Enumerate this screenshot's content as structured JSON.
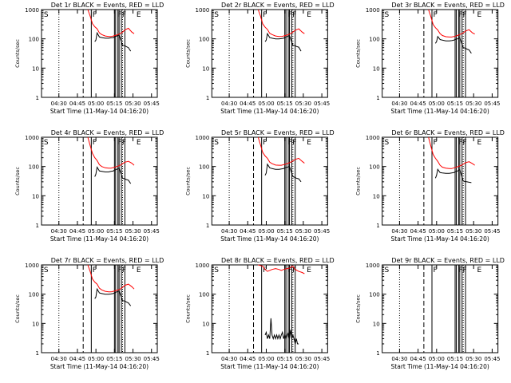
{
  "figure": {
    "xlabel_template": "Start Time (11-May-14 04:16:20)",
    "ylabel": "Counts/sec",
    "x_ticks": [
      "04:30",
      "04:45",
      "05:00",
      "05:15",
      "05:30",
      "05:45"
    ],
    "y_ticks": [
      "1",
      "10",
      "100",
      "1000"
    ],
    "event_letters": [
      "S",
      "F",
      "FF",
      "E"
    ],
    "colors": {
      "events": "#000000",
      "lld": "#ff0000",
      "axes": "#000000"
    }
  },
  "chart_data": [
    {
      "type": "line",
      "title": "Det 1r BLACK = Events, RED = LLD",
      "xlabel": "Start Time (11-May-14 04:16:20)",
      "ylabel": "Counts/sec",
      "y_scale": "log",
      "ylim": [
        1,
        1000
      ],
      "series": [
        {
          "name": "Events",
          "color": "#000000",
          "x": [
            0.46,
            0.47,
            0.48,
            0.5,
            0.52,
            0.55,
            0.58,
            0.6,
            0.62,
            0.63,
            0.65,
            0.67,
            0.7,
            0.72,
            0.73,
            0.75,
            0.77
          ],
          "y": [
            80,
            90,
            160,
            115,
            110,
            105,
            105,
            108,
            110,
            118,
            125,
            135,
            60,
            58,
            55,
            50,
            38
          ]
        },
        {
          "name": "LLD",
          "color": "#ff0000",
          "x": [
            0.4,
            0.42,
            0.44,
            0.46,
            0.48,
            0.5,
            0.52,
            0.55,
            0.58,
            0.6,
            0.62,
            0.65,
            0.68,
            0.7,
            0.72,
            0.75,
            0.78,
            0.8
          ],
          "y": [
            1000,
            600,
            330,
            260,
            220,
            160,
            140,
            125,
            120,
            120,
            125,
            135,
            150,
            170,
            200,
            230,
            170,
            150
          ]
        }
      ]
    },
    {
      "type": "line",
      "title": "Det 2r BLACK = Events, RED = LLD",
      "xlabel": "Start Time (11-May-14 04:16:20)",
      "ylabel": "Counts/sec",
      "y_scale": "log",
      "ylim": [
        1,
        1000
      ],
      "series": [
        {
          "name": "Events",
          "color": "#000000",
          "x": [
            0.46,
            0.47,
            0.48,
            0.5,
            0.52,
            0.55,
            0.58,
            0.6,
            0.62,
            0.63,
            0.65,
            0.67,
            0.7,
            0.72,
            0.73,
            0.75,
            0.77
          ],
          "y": [
            80,
            90,
            150,
            110,
            105,
            100,
            100,
            102,
            105,
            110,
            120,
            128,
            60,
            58,
            55,
            52,
            38
          ]
        },
        {
          "name": "LLD",
          "color": "#ff0000",
          "x": [
            0.4,
            0.42,
            0.44,
            0.46,
            0.48,
            0.5,
            0.52,
            0.55,
            0.58,
            0.6,
            0.62,
            0.65,
            0.68,
            0.7,
            0.72,
            0.75,
            0.78,
            0.8
          ],
          "y": [
            1000,
            600,
            320,
            250,
            210,
            155,
            140,
            125,
            120,
            120,
            125,
            135,
            150,
            170,
            195,
            220,
            170,
            150
          ]
        }
      ]
    },
    {
      "type": "line",
      "title": "Det 3r BLACK = Events, RED = LLD",
      "xlabel": "Start Time (11-May-14 04:16:20)",
      "ylabel": "Counts/sec",
      "y_scale": "log",
      "ylim": [
        1,
        1000
      ],
      "series": [
        {
          "name": "Events",
          "color": "#000000",
          "x": [
            0.46,
            0.47,
            0.48,
            0.5,
            0.52,
            0.55,
            0.58,
            0.6,
            0.62,
            0.63,
            0.65,
            0.67,
            0.7,
            0.72,
            0.73,
            0.75,
            0.77
          ],
          "y": [
            70,
            80,
            120,
            95,
            90,
            85,
            85,
            87,
            90,
            95,
            100,
            108,
            50,
            48,
            45,
            42,
            32
          ]
        },
        {
          "name": "LLD",
          "color": "#ff0000",
          "x": [
            0.4,
            0.42,
            0.44,
            0.46,
            0.48,
            0.5,
            0.52,
            0.55,
            0.58,
            0.6,
            0.62,
            0.65,
            0.68,
            0.7,
            0.72,
            0.75,
            0.78,
            0.8
          ],
          "y": [
            1000,
            580,
            310,
            240,
            200,
            150,
            130,
            118,
            115,
            115,
            120,
            130,
            145,
            160,
            185,
            205,
            160,
            145
          ]
        }
      ]
    },
    {
      "type": "line",
      "title": "Det 4r BLACK = Events, RED = LLD",
      "xlabel": "Start Time (11-May-14 04:16:20)",
      "ylabel": "Counts/sec",
      "y_scale": "log",
      "ylim": [
        1,
        1000
      ],
      "series": [
        {
          "name": "Events",
          "color": "#000000",
          "x": [
            0.46,
            0.47,
            0.48,
            0.5,
            0.52,
            0.55,
            0.58,
            0.6,
            0.62,
            0.63,
            0.65,
            0.67,
            0.7,
            0.72,
            0.73,
            0.75,
            0.77
          ],
          "y": [
            45,
            55,
            95,
            70,
            68,
            65,
            65,
            68,
            70,
            75,
            80,
            88,
            40,
            38,
            36,
            34,
            26
          ]
        },
        {
          "name": "LLD",
          "color": "#ff0000",
          "x": [
            0.4,
            0.42,
            0.44,
            0.46,
            0.48,
            0.5,
            0.52,
            0.55,
            0.58,
            0.6,
            0.62,
            0.65,
            0.68,
            0.7,
            0.72,
            0.75,
            0.78,
            0.8
          ],
          "y": [
            1000,
            520,
            280,
            200,
            160,
            115,
            100,
            90,
            88,
            88,
            92,
            100,
            110,
            125,
            140,
            150,
            130,
            110
          ]
        }
      ]
    },
    {
      "type": "line",
      "title": "Det 5r BLACK = Events, RED = LLD",
      "xlabel": "Start Time (11-May-14 04:16:20)",
      "ylabel": "Counts/sec",
      "y_scale": "log",
      "ylim": [
        1,
        1000
      ],
      "series": [
        {
          "name": "Events",
          "color": "#000000",
          "x": [
            0.46,
            0.47,
            0.48,
            0.5,
            0.52,
            0.55,
            0.58,
            0.6,
            0.62,
            0.63,
            0.65,
            0.67,
            0.7,
            0.72,
            0.73,
            0.75,
            0.77
          ],
          "y": [
            50,
            60,
            120,
            90,
            85,
            80,
            80,
            82,
            85,
            90,
            95,
            100,
            45,
            42,
            40,
            38,
            30
          ]
        },
        {
          "name": "LLD",
          "color": "#ff0000",
          "x": [
            0.4,
            0.42,
            0.44,
            0.46,
            0.48,
            0.5,
            0.52,
            0.55,
            0.58,
            0.6,
            0.62,
            0.65,
            0.68,
            0.7,
            0.72,
            0.75,
            0.78,
            0.8
          ],
          "y": [
            1000,
            550,
            300,
            230,
            190,
            140,
            125,
            112,
            110,
            110,
            115,
            125,
            140,
            155,
            175,
            190,
            150,
            130
          ]
        }
      ]
    },
    {
      "type": "line",
      "title": "Det 6r BLACK = Events, RED = LLD",
      "xlabel": "Start Time (11-May-14 04:16:20)",
      "ylabel": "Counts/sec",
      "y_scale": "log",
      "ylim": [
        1,
        1000
      ],
      "series": [
        {
          "name": "Events",
          "color": "#000000",
          "x": [
            0.46,
            0.47,
            0.48,
            0.5,
            0.52,
            0.55,
            0.58,
            0.6,
            0.62,
            0.63,
            0.65,
            0.67,
            0.7,
            0.72,
            0.73,
            0.75,
            0.77
          ],
          "y": [
            40,
            50,
            80,
            62,
            60,
            58,
            58,
            60,
            62,
            66,
            70,
            78,
            32,
            30,
            30,
            29,
            28
          ]
        },
        {
          "name": "LLD",
          "color": "#ff0000",
          "x": [
            0.4,
            0.42,
            0.44,
            0.46,
            0.48,
            0.5,
            0.52,
            0.55,
            0.58,
            0.6,
            0.62,
            0.65,
            0.68,
            0.7,
            0.72,
            0.75,
            0.78,
            0.8
          ],
          "y": [
            1000,
            500,
            260,
            190,
            150,
            110,
            95,
            88,
            85,
            85,
            90,
            98,
            108,
            120,
            135,
            145,
            125,
            110
          ]
        }
      ]
    },
    {
      "type": "line",
      "title": "Det 7r BLACK = Events, RED = LLD",
      "xlabel": "Start Time (11-May-14 04:16:20)",
      "ylabel": "Counts/sec",
      "y_scale": "log",
      "ylim": [
        1,
        1000
      ],
      "series": [
        {
          "name": "Events",
          "color": "#000000",
          "x": [
            0.46,
            0.47,
            0.48,
            0.5,
            0.52,
            0.55,
            0.58,
            0.6,
            0.62,
            0.63,
            0.65,
            0.67,
            0.7,
            0.72,
            0.73,
            0.75,
            0.77
          ],
          "y": [
            70,
            80,
            150,
            110,
            105,
            100,
            100,
            102,
            105,
            110,
            120,
            128,
            60,
            58,
            55,
            50,
            40
          ]
        },
        {
          "name": "LLD",
          "color": "#ff0000",
          "x": [
            0.4,
            0.42,
            0.44,
            0.46,
            0.48,
            0.5,
            0.52,
            0.55,
            0.58,
            0.6,
            0.62,
            0.65,
            0.68,
            0.7,
            0.72,
            0.75,
            0.78,
            0.8
          ],
          "y": [
            1000,
            600,
            330,
            260,
            220,
            160,
            140,
            125,
            120,
            120,
            125,
            135,
            150,
            170,
            200,
            220,
            180,
            150
          ]
        }
      ]
    },
    {
      "type": "line",
      "title": "Det 8r BLACK = Events, RED = LLD",
      "xlabel": "Start Time (11-May-14 04:16:20)",
      "ylabel": "Counts/sec",
      "y_scale": "log",
      "ylim": [
        1,
        1000
      ],
      "series": [
        {
          "name": "Events",
          "color": "#000000",
          "x": [
            0.46,
            0.47,
            0.48,
            0.49,
            0.5,
            0.51,
            0.52,
            0.53,
            0.54,
            0.55,
            0.56,
            0.57,
            0.58,
            0.59,
            0.6,
            0.61,
            0.62,
            0.63,
            0.64,
            0.65,
            0.66,
            0.67,
            0.68,
            0.69,
            0.7,
            0.71,
            0.72,
            0.73,
            0.74,
            0.75
          ],
          "y": [
            4,
            5,
            3,
            4,
            3,
            15,
            4,
            3,
            4,
            3,
            4,
            3,
            4,
            3,
            4,
            5,
            3,
            4,
            3,
            4,
            5,
            3,
            6,
            3,
            4,
            3,
            2,
            3,
            2,
            2
          ]
        },
        {
          "name": "LLD",
          "color": "#ff0000",
          "x": [
            0.4,
            0.42,
            0.44,
            0.46,
            0.48,
            0.5,
            0.52,
            0.55,
            0.58,
            0.6,
            0.62,
            0.65,
            0.68,
            0.69,
            0.7,
            0.72,
            0.75,
            0.78,
            0.8
          ],
          "y": [
            1000,
            950,
            900,
            700,
            600,
            650,
            700,
            750,
            700,
            650,
            700,
            750,
            800,
            900,
            900,
            700,
            600,
            550,
            500
          ]
        }
      ]
    },
    {
      "type": "line",
      "title": "Det 9r BLACK = Events, RED = LLD",
      "xlabel": "Start Time (11-May-14 04:16:20)",
      "ylabel": "Counts/sec",
      "y_scale": "log",
      "ylim": [
        1,
        1000
      ],
      "series": []
    }
  ]
}
